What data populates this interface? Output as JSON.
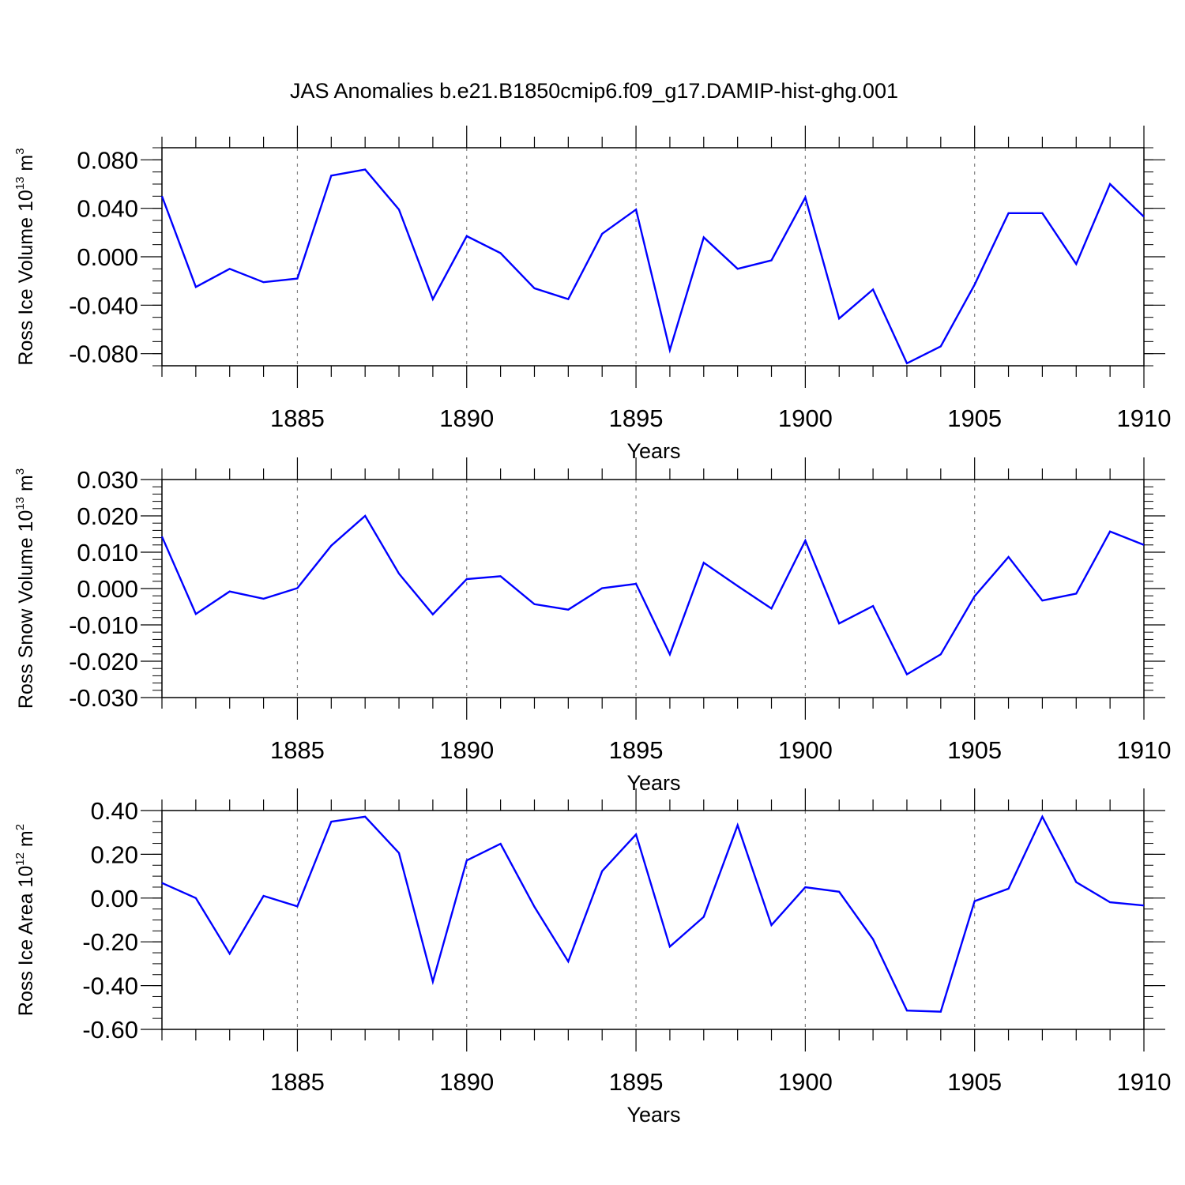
{
  "title": "JAS Anomalies b.e21.B1850cmip6.f09_g17.DAMIP-hist-ghg.001",
  "colors": {
    "line": "#0000ff",
    "axis": "#000000",
    "grid": "#7f7f7f"
  },
  "chart_data": [
    {
      "type": "line",
      "ylabel": {
        "text": "Ross Ice Volume 10",
        "exp": "13",
        "unit": " m",
        "unit_exp": "3"
      },
      "xlabel": "Years",
      "xlim": [
        1881,
        1910
      ],
      "ylim": [
        -0.09,
        0.09
      ],
      "x_ticks": [
        "1885",
        "1890",
        "1895",
        "1900",
        "1905",
        "1910"
      ],
      "y_ticks": [
        "0.080",
        "0.040",
        "0.000",
        "-0.040",
        "-0.080"
      ],
      "y_tick_values": [
        0.08,
        0.04,
        0.0,
        -0.04,
        -0.08
      ],
      "y_minor_step": 0.01,
      "grid": "vertical dashed at major x ticks",
      "x": [
        1881,
        1882,
        1883,
        1884,
        1885,
        1886,
        1887,
        1888,
        1889,
        1890,
        1891,
        1892,
        1893,
        1894,
        1895,
        1896,
        1897,
        1898,
        1899,
        1900,
        1901,
        1902,
        1903,
        1904,
        1905,
        1906,
        1907,
        1908,
        1909,
        1910
      ],
      "series": [
        {
          "values": [
            0.05,
            -0.025,
            -0.01,
            -0.021,
            -0.018,
            0.067,
            0.072,
            0.039,
            -0.035,
            0.017,
            0.003,
            -0.026,
            -0.035,
            0.019,
            0.039,
            -0.077,
            0.016,
            -0.01,
            -0.003,
            0.049,
            -0.051,
            -0.027,
            -0.088,
            -0.074,
            -0.023,
            0.036,
            0.036,
            -0.006,
            0.06,
            0.033
          ]
        }
      ]
    },
    {
      "type": "line",
      "ylabel": {
        "text": "Ross Snow Volume 10",
        "exp": "13",
        "unit": " m",
        "unit_exp": "3"
      },
      "xlabel": "Years",
      "xlim": [
        1881,
        1910
      ],
      "ylim": [
        -0.03,
        0.03
      ],
      "x_ticks": [
        "1885",
        "1890",
        "1895",
        "1900",
        "1905",
        "1910"
      ],
      "y_ticks": [
        "0.030",
        "0.020",
        "0.010",
        "0.000",
        "-0.010",
        "-0.020",
        "-0.030"
      ],
      "y_tick_values": [
        0.03,
        0.02,
        0.01,
        0.0,
        -0.01,
        -0.02,
        -0.03
      ],
      "y_minor_step": 0.002,
      "grid": "vertical dashed at major x ticks",
      "x": [
        1881,
        1882,
        1883,
        1884,
        1885,
        1886,
        1887,
        1888,
        1889,
        1890,
        1891,
        1892,
        1893,
        1894,
        1895,
        1896,
        1897,
        1898,
        1899,
        1900,
        1901,
        1902,
        1903,
        1904,
        1905,
        1906,
        1907,
        1908,
        1909,
        1910
      ],
      "series": [
        {
          "values": [
            0.0143,
            -0.007,
            -0.0008,
            -0.0028,
            0.0001,
            0.0118,
            0.02,
            0.0041,
            -0.0071,
            0.0026,
            0.0034,
            -0.0043,
            -0.0058,
            0.0001,
            0.0013,
            -0.0181,
            0.0071,
            0.0007,
            -0.0055,
            0.0132,
            -0.0096,
            -0.0048,
            -0.0236,
            -0.0181,
            -0.0021,
            0.0087,
            -0.0033,
            -0.0014,
            0.0157,
            0.012
          ]
        }
      ]
    },
    {
      "type": "line",
      "ylabel": {
        "text": "Ross Ice Area 10",
        "exp": "12",
        "unit": " m",
        "unit_exp": "2"
      },
      "xlabel": "Years",
      "xlim": [
        1881,
        1910
      ],
      "ylim": [
        -0.6,
        0.4
      ],
      "x_ticks": [
        "1885",
        "1890",
        "1895",
        "1900",
        "1905",
        "1910"
      ],
      "y_ticks": [
        "0.40",
        "0.20",
        "0.00",
        "-0.20",
        "-0.40",
        "-0.60"
      ],
      "y_tick_values": [
        0.4,
        0.2,
        0.0,
        -0.2,
        -0.4,
        -0.6
      ],
      "y_minor_step": 0.05,
      "grid": "vertical dashed at major x ticks",
      "x": [
        1881,
        1882,
        1883,
        1884,
        1885,
        1886,
        1887,
        1888,
        1889,
        1890,
        1891,
        1892,
        1893,
        1894,
        1895,
        1896,
        1897,
        1898,
        1899,
        1900,
        1901,
        1902,
        1903,
        1904,
        1905,
        1906,
        1907,
        1908,
        1909,
        1910
      ],
      "series": [
        {
          "values": [
            0.069,
            0.0,
            -0.254,
            0.01,
            -0.038,
            0.349,
            0.372,
            0.206,
            -0.382,
            0.172,
            0.248,
            -0.04,
            -0.29,
            0.123,
            0.291,
            -0.222,
            -0.086,
            0.333,
            -0.124,
            0.05,
            0.029,
            -0.188,
            -0.514,
            -0.519,
            -0.014,
            0.043,
            0.372,
            0.073,
            -0.019,
            -0.034
          ]
        }
      ]
    }
  ]
}
